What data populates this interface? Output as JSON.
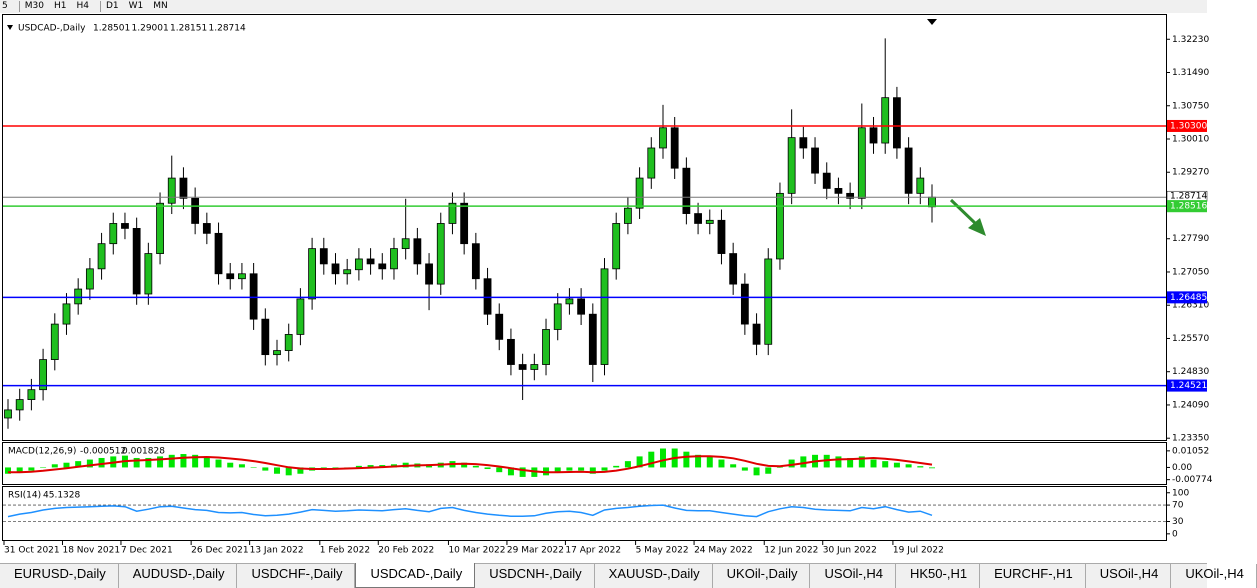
{
  "toolbar": [
    "5",
    "M30",
    "H1",
    "H4",
    "D1",
    "W1",
    "MN"
  ],
  "chart_data": {
    "type": "candlestick",
    "symbol": "USDCAD-,Daily",
    "categories": [
      "31 Oct 2021",
      null,
      null,
      null,
      null,
      "18 Nov 2021",
      null,
      null,
      null,
      null,
      "7 Dec 2021",
      null,
      null,
      null,
      null,
      null,
      "26 Dec 2021",
      null,
      null,
      null,
      null,
      "13 Jan 2022",
      null,
      null,
      null,
      null,
      null,
      "1 Feb 2022",
      null,
      null,
      null,
      null,
      "20 Feb 2022",
      null,
      null,
      null,
      null,
      null,
      "10 Mar 2022",
      null,
      null,
      null,
      null,
      "29 Mar 2022",
      null,
      null,
      null,
      null,
      "17 Apr 2022",
      null,
      null,
      null,
      null,
      null,
      "5 May 2022",
      null,
      null,
      null,
      null,
      "24 May 2022",
      null,
      null,
      null,
      null,
      null,
      "12 Jun 2022",
      null,
      null,
      null,
      null,
      "30 Jun 2022",
      null,
      null,
      null,
      null,
      null,
      "19 Jul 2022",
      null,
      null,
      null
    ],
    "open": [
      1.238,
      1.2398,
      1.2421,
      1.2443,
      1.251,
      1.2589,
      1.2634,
      1.2667,
      1.2712,
      1.2768,
      1.2813,
      1.2802,
      1.2656,
      1.2746,
      1.2858,
      1.2914,
      1.2869,
      1.2813,
      1.2791,
      1.2701,
      1.269,
      1.2701,
      1.26,
      1.2521,
      1.253,
      1.2566,
      1.2645,
      1.2757,
      1.2723,
      1.2701,
      1.271,
      1.2734,
      1.2723,
      1.2712,
      1.2757,
      1.2779,
      1.2723,
      1.2678,
      1.2813,
      1.2858,
      1.2768,
      1.269,
      1.2611,
      1.2555,
      1.2499,
      1.2488,
      1.2499,
      1.2577,
      1.2634,
      1.2645,
      1.2611,
      1.2499,
      1.2712,
      1.2813,
      1.2847,
      1.2914,
      1.2981,
      1.3026,
      1.2936,
      1.2835,
      1.2813,
      1.282,
      1.2746,
      1.2678,
      1.2589,
      1.2544,
      1.2734,
      1.288,
      1.3004,
      1.2981,
      1.2925,
      1.2891,
      1.288,
      1.2869,
      1.3026,
      1.2992,
      1.3093,
      1.2981,
      1.288,
      1.28501
    ],
    "high": [
      1.2422,
      1.2445,
      1.2467,
      1.2534,
      1.2613,
      1.2658,
      1.2691,
      1.2736,
      1.2792,
      1.2837,
      1.2837,
      1.2826,
      1.277,
      1.2882,
      1.2964,
      1.2938,
      1.2893,
      1.2837,
      1.2815,
      1.2725,
      1.2725,
      1.2725,
      1.2624,
      1.2554,
      1.259,
      1.2669,
      1.2781,
      1.2781,
      1.2747,
      1.2734,
      1.2758,
      1.2758,
      1.2747,
      1.2781,
      1.2868,
      1.2803,
      1.2747,
      1.2837,
      1.2882,
      1.2882,
      1.2792,
      1.2714,
      1.2635,
      1.2579,
      1.2523,
      1.2523,
      1.2601,
      1.2658,
      1.2669,
      1.2669,
      1.2635,
      1.2736,
      1.2837,
      1.2871,
      1.2938,
      1.3005,
      1.3077,
      1.305,
      1.296,
      1.2859,
      1.2844,
      1.2844,
      1.277,
      1.2702,
      1.2613,
      1.2758,
      1.2904,
      1.3067,
      1.3028,
      1.3005,
      1.2949,
      1.2915,
      1.2904,
      1.308,
      1.305,
      1.3225,
      1.3117,
      1.3005,
      1.2938,
      1.29001
    ],
    "low": [
      1.2356,
      1.2374,
      1.2397,
      1.2419,
      1.2486,
      1.2565,
      1.261,
      1.2643,
      1.2688,
      1.2744,
      1.2778,
      1.2632,
      1.2632,
      1.2722,
      1.2834,
      1.2845,
      1.2789,
      1.2767,
      1.2677,
      1.2666,
      1.2666,
      1.2576,
      1.2497,
      1.2497,
      1.2506,
      1.2542,
      1.2621,
      1.2699,
      1.2677,
      1.2677,
      1.2686,
      1.2699,
      1.2688,
      1.2688,
      1.2733,
      1.2699,
      1.262,
      1.2654,
      1.2789,
      1.2744,
      1.2666,
      1.2587,
      1.2531,
      1.2475,
      1.242,
      1.2464,
      1.2475,
      1.2553,
      1.261,
      1.2587,
      1.246,
      1.2475,
      1.2688,
      1.2789,
      1.2823,
      1.289,
      1.2957,
      1.2912,
      1.2811,
      1.2789,
      1.2789,
      1.2722,
      1.2654,
      1.2565,
      1.252,
      1.252,
      1.271,
      1.2856,
      1.2957,
      1.2901,
      1.2867,
      1.2856,
      1.2845,
      1.2845,
      1.2968,
      1.2968,
      1.2957,
      1.2856,
      1.2856,
      1.28151
    ],
    "close": [
      1.2398,
      1.2421,
      1.2443,
      1.251,
      1.2589,
      1.2634,
      1.2667,
      1.2712,
      1.2768,
      1.2813,
      1.2802,
      1.2656,
      1.2746,
      1.2858,
      1.2914,
      1.2869,
      1.2813,
      1.2791,
      1.2701,
      1.269,
      1.2701,
      1.26,
      1.2521,
      1.253,
      1.2566,
      1.2645,
      1.2757,
      1.2723,
      1.2701,
      1.271,
      1.2734,
      1.2723,
      1.2712,
      1.2757,
      1.2779,
      1.2723,
      1.2678,
      1.2813,
      1.2858,
      1.2768,
      1.269,
      1.2611,
      1.2555,
      1.2499,
      1.2488,
      1.2499,
      1.2577,
      1.2634,
      1.2645,
      1.2611,
      1.2499,
      1.2712,
      1.2813,
      1.2847,
      1.2914,
      1.2981,
      1.3026,
      1.2936,
      1.2835,
      1.2813,
      1.282,
      1.2746,
      1.2678,
      1.2589,
      1.2544,
      1.2734,
      1.288,
      1.3004,
      1.2981,
      1.2925,
      1.2891,
      1.288,
      1.2869,
      1.3026,
      1.2992,
      1.3093,
      1.2981,
      1.288,
      1.2914,
      1.28714
    ],
    "bull_color": "#1fbf1f",
    "bear_color": "#000000",
    "ylim": [
      1.2331,
      1.3277
    ],
    "yticks": [
      {
        "value": 1.3223,
        "label": "1.32230"
      },
      {
        "value": 1.3149,
        "label": "1.31490"
      },
      {
        "value": 1.3075,
        "label": "1.30750"
      },
      {
        "value": 1.3001,
        "label": "1.30010"
      },
      {
        "value": 1.2927,
        "label": "1.29270"
      },
      {
        "value": 1.2779,
        "label": "1.27790"
      },
      {
        "value": 1.2705,
        "label": "1.27050"
      },
      {
        "value": 1.2631,
        "label": "1.26310"
      },
      {
        "value": 1.2557,
        "label": "1.25570"
      },
      {
        "value": 1.2483,
        "label": "1.24830"
      },
      {
        "value": 1.2409,
        "label": "1.24090"
      },
      {
        "value": 1.2335,
        "label": "1.23350"
      }
    ],
    "levels": [
      {
        "value": {
          "value": 1.303,
          "label": "1.30300"
        },
        "color": "#ff0000"
      },
      {
        "value": 1.28516,
        "color": "#33cc33"
      },
      {
        "value": 1.26485,
        "color": "#0000ff"
      },
      {
        "value": 1.24521,
        "color": "#0000ff"
      }
    ],
    "macd_title": "MACD(12,26,9)",
    "macd": [
      -0.004,
      -0.003,
      -0.002,
      0.0,
      0.002,
      0.003,
      0.004,
      0.005,
      0.006,
      0.007,
      0.0075,
      0.006,
      0.006,
      0.007,
      0.008,
      0.0085,
      0.008,
      0.007,
      0.005,
      0.003,
      0.002,
      0.0,
      -0.002,
      -0.004,
      -0.005,
      -0.004,
      -0.002,
      -0.001,
      -0.0005,
      0.0,
      0.001,
      0.0015,
      0.0015,
      0.002,
      0.003,
      0.0025,
      0.002,
      0.003,
      0.004,
      0.003,
      0.001,
      -0.001,
      -0.003,
      -0.005,
      -0.006,
      -0.006,
      -0.005,
      -0.003,
      -0.002,
      -0.002,
      -0.004,
      -0.002,
      0.001,
      0.004,
      0.007,
      0.01,
      0.012,
      0.012,
      0.01,
      0.008,
      0.007,
      0.005,
      0.002,
      -0.002,
      -0.005,
      -0.004,
      0.0,
      0.005,
      0.007,
      0.008,
      0.008,
      0.007,
      0.006,
      0.007,
      0.005,
      0.004,
      0.003,
      0.002,
      0.0008,
      -0.000512
    ],
    "signal": [
      -0.003,
      -0.003,
      -0.0027,
      -0.0021,
      -0.0013,
      -0.0005,
      0.0004,
      0.0013,
      0.0022,
      0.0031,
      0.004,
      0.0044,
      0.0047,
      0.0051,
      0.0056,
      0.0062,
      0.0065,
      0.0066,
      0.0063,
      0.0057,
      0.005,
      0.004,
      0.0028,
      0.0014,
      0.0001,
      -0.0007,
      -0.001,
      -0.001,
      -0.0009,
      -0.0007,
      -0.0004,
      -0.0001,
      0.0002,
      0.0006,
      0.001,
      0.0013,
      0.0015,
      0.0018,
      0.0022,
      0.0024,
      0.0021,
      0.0015,
      0.0006,
      -0.0005,
      -0.0016,
      -0.0025,
      -0.003,
      -0.003,
      -0.0029,
      -0.0027,
      -0.003,
      -0.0028,
      -0.002,
      -0.0008,
      0.0008,
      0.0026,
      0.0045,
      0.006,
      0.0068,
      0.0071,
      0.0071,
      0.0067,
      0.0058,
      0.0042,
      0.0023,
      0.001,
      0.0008,
      0.0016,
      0.0027,
      0.0038,
      0.0046,
      0.0051,
      0.0053,
      0.0056,
      0.006,
      0.0055,
      0.0048,
      0.0038,
      0.0028,
      0.001828
    ],
    "macd_color": "#00e600",
    "signal_color": "#e00000",
    "macd_ylim": [
      -0.0105,
      0.0155
    ],
    "macd_yticks": [
      0.01052,
      {
        "value": 0,
        "label": "0.00"
      },
      -0.00774
    ],
    "rsi_title": "RSI(14)",
    "rsi": [
      42,
      48,
      52,
      58,
      62,
      64,
      65,
      66,
      67,
      68,
      66,
      55,
      60,
      66,
      67,
      63,
      59,
      57,
      52,
      51,
      52,
      47,
      44,
      45,
      48,
      53,
      59,
      57,
      55,
      56,
      58,
      57,
      56,
      59,
      61,
      57,
      54,
      62,
      64,
      57,
      52,
      48,
      45,
      43,
      43,
      44,
      50,
      54,
      55,
      52,
      45,
      58,
      62,
      64,
      67,
      69,
      70,
      63,
      57,
      56,
      56,
      52,
      48,
      44,
      42,
      54,
      61,
      66,
      64,
      60,
      58,
      57,
      56,
      64,
      61,
      66,
      59,
      53,
      55,
      45.1328
    ],
    "rsi_color": "#1e90ff",
    "rsi_ylim": [
      -15,
      114
    ],
    "rsi_yticks": [
      100,
      70,
      30,
      0
    ],
    "rsi_levels": [
      70,
      30
    ]
  },
  "tabs": [
    "EURUSD-,Daily",
    "AUDUSD-,Daily",
    "USDCHF-,Daily",
    "USDCAD-,Daily",
    "USDCNH-,Daily",
    "XAUUSD-,Daily",
    "UKOil-,Daily",
    "USOil-,H4",
    "HK50-,H1",
    "EURCHF-,H1",
    "USOil-,H4",
    "UKOil-,H4"
  ],
  "active_tab": "USDCAD-,Daily"
}
